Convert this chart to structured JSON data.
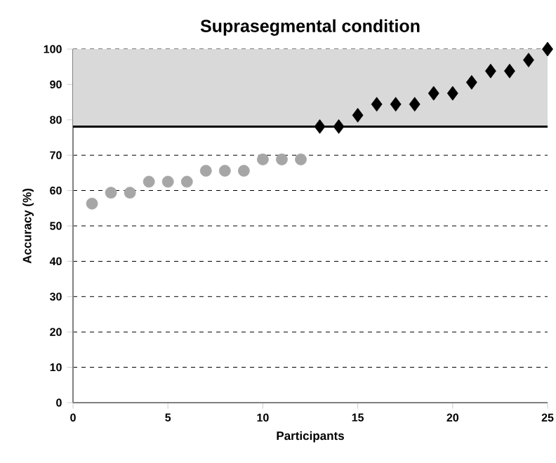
{
  "chart_data": {
    "type": "scatter",
    "title": "Suprasegmental condition",
    "xlabel": "Participants",
    "ylabel": "Accuracy (%)",
    "xlim": [
      0,
      25
    ],
    "xticks": [
      0,
      5,
      10,
      15,
      20,
      25
    ],
    "ylim": [
      0,
      100
    ],
    "yticks": [
      0,
      10,
      20,
      30,
      40,
      50,
      60,
      70,
      80,
      90,
      100
    ],
    "grid": "y",
    "series": [
      {
        "color": "#a6a6a6",
        "marker": "circle",
        "x": [
          1,
          2,
          3,
          4,
          5,
          6,
          7,
          8,
          9,
          10,
          11,
          12
        ],
        "values": [
          56.3,
          59.4,
          59.4,
          62.5,
          62.5,
          62.5,
          65.6,
          65.6,
          65.6,
          68.8,
          68.8,
          68.8
        ]
      },
      {
        "color": "#000000",
        "marker": "diamond",
        "x": [
          13,
          14,
          15,
          16,
          17,
          18,
          19,
          20,
          21,
          22,
          23,
          24,
          25
        ],
        "values": [
          78.1,
          78.1,
          81.3,
          84.4,
          84.4,
          84.4,
          87.5,
          87.5,
          90.6,
          93.8,
          93.8,
          96.9,
          100
        ]
      }
    ],
    "ref_lines": [
      {
        "axis": "y",
        "value": 78.1,
        "color": "#000000",
        "line_style": "solid"
      }
    ],
    "bands": [
      {
        "axis": "y",
        "from": 78.1,
        "to": 100,
        "color": "#d9d9d9"
      }
    ]
  }
}
